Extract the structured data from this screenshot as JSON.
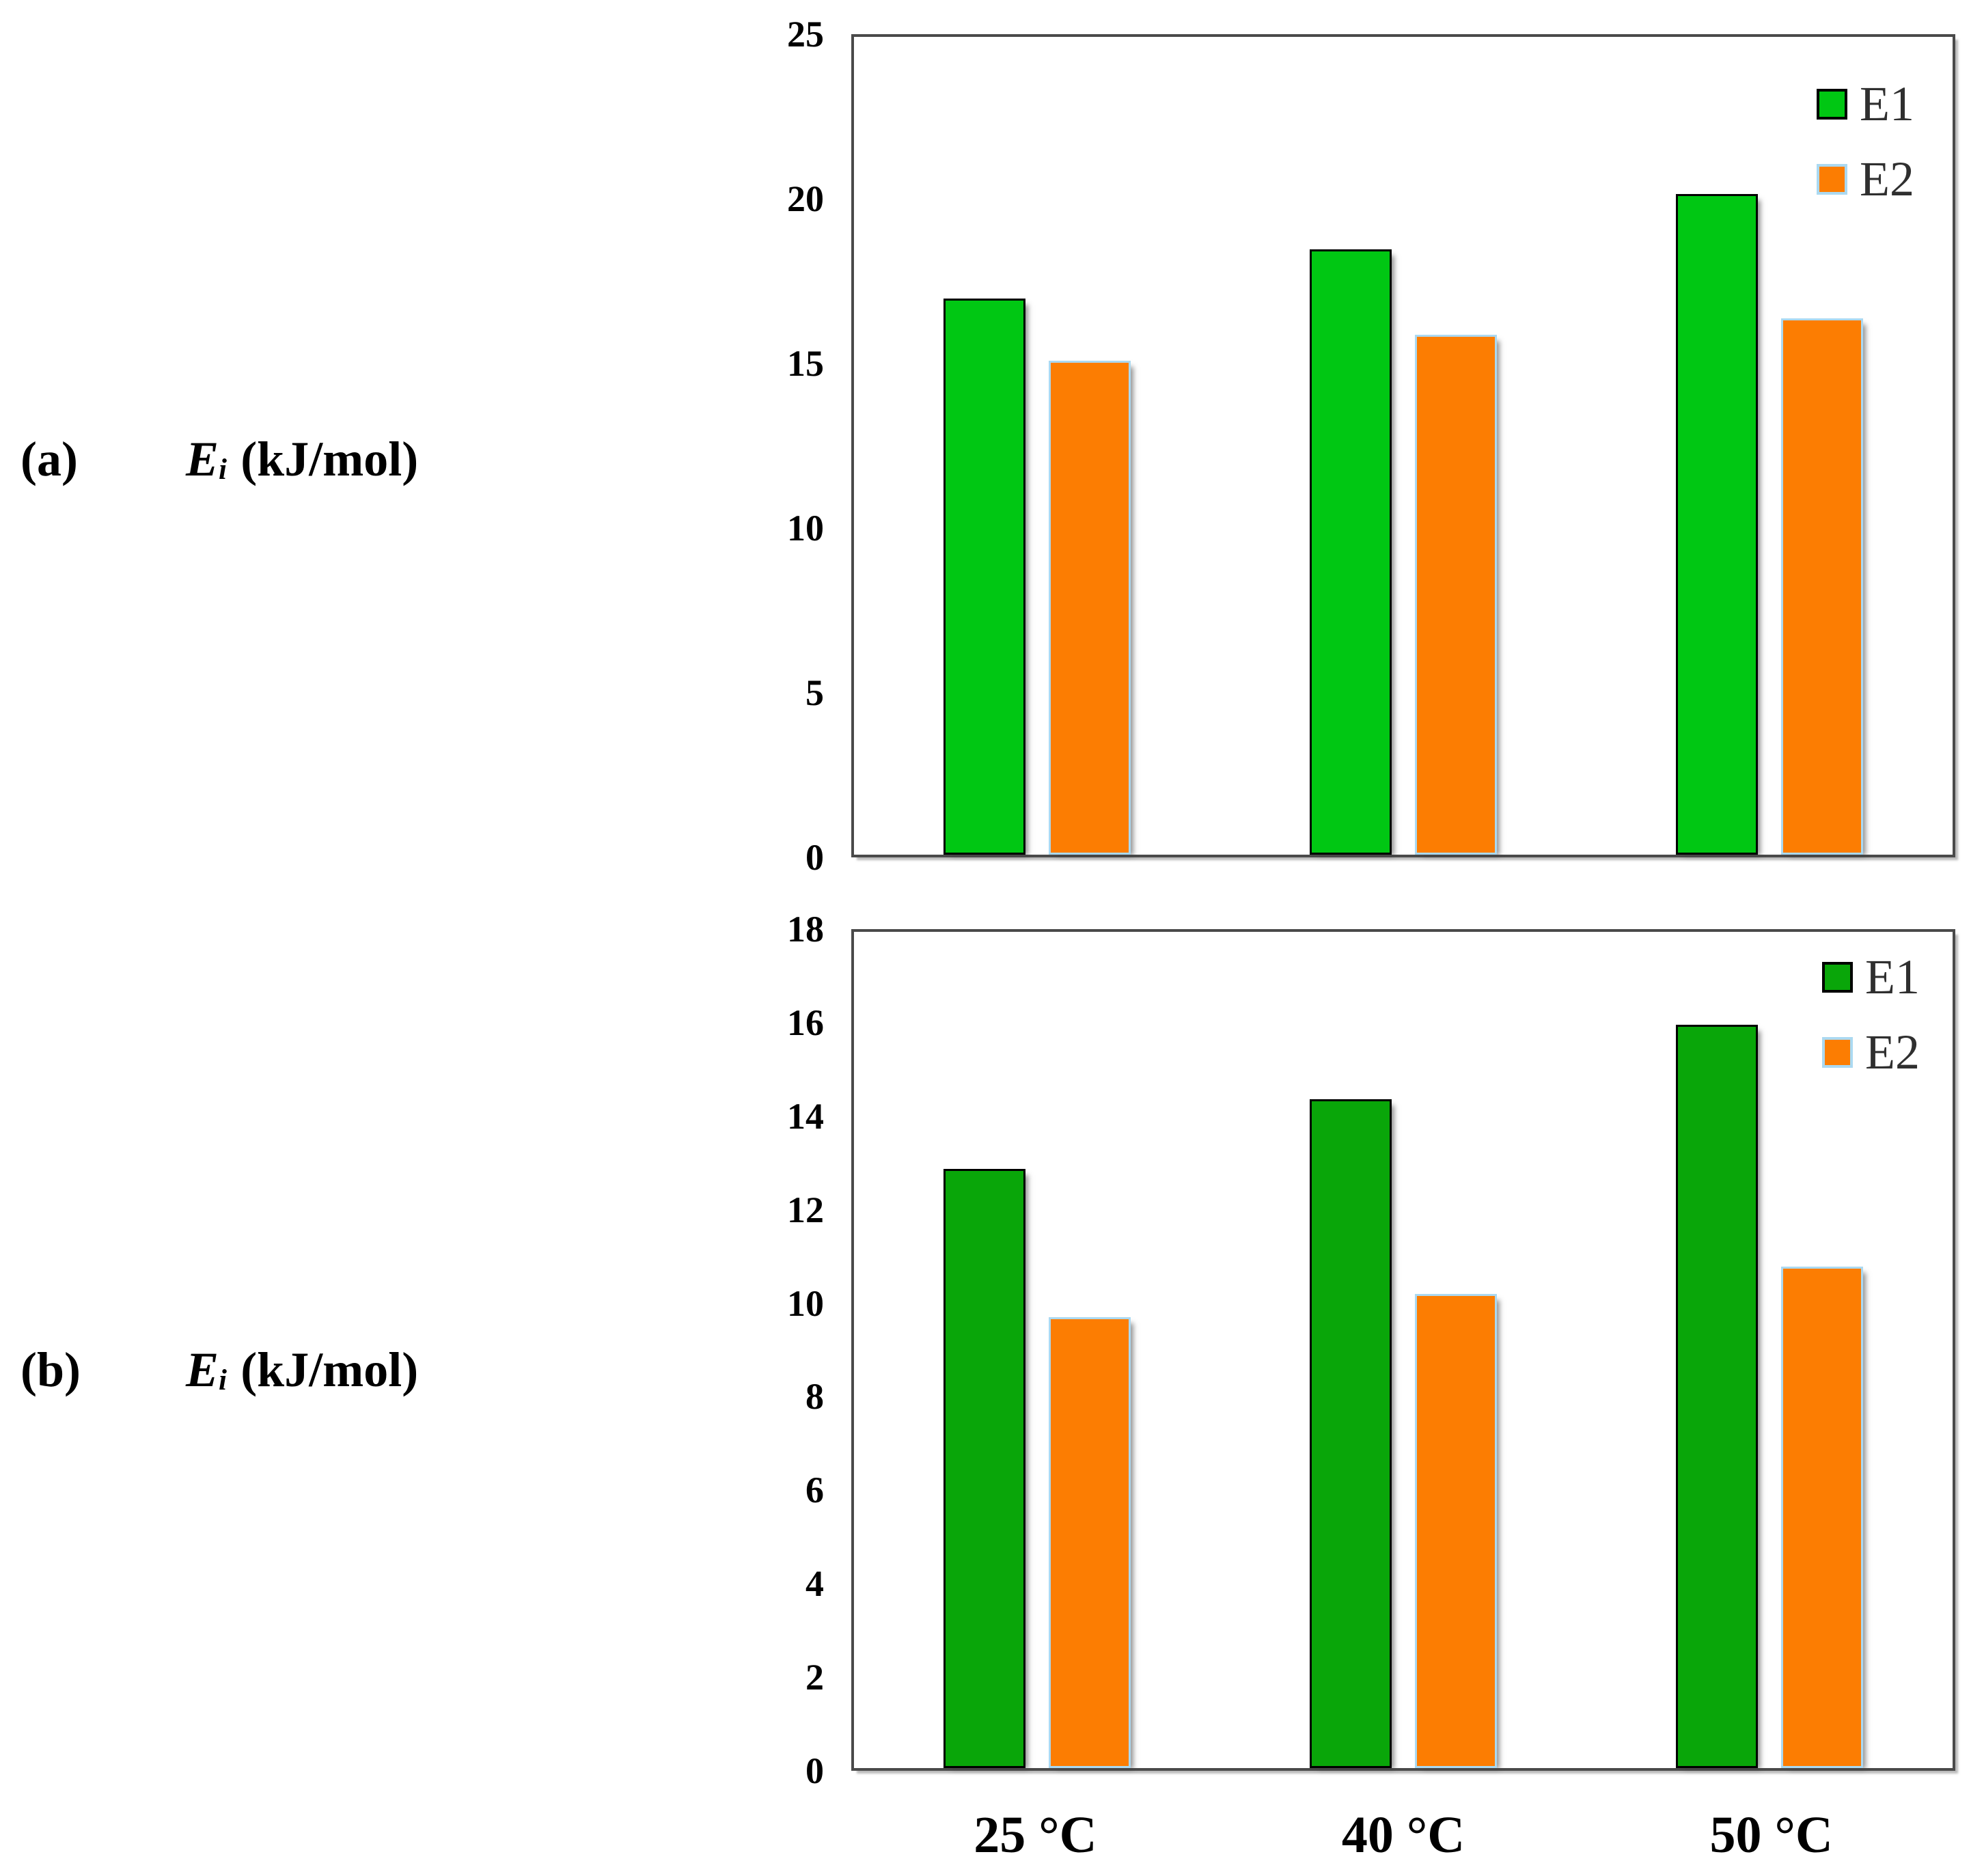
{
  "figure": {
    "background": "#ffffff",
    "frame_color": "#4a4a4a",
    "tick_text_color": "#000000",
    "legend_text_color": "#2f2f2f"
  },
  "chart_data": [
    {
      "type": "bar",
      "panel_label": "(a)",
      "ylabel_symbol": "E",
      "ylabel_subscript": "i",
      "ylabel_units": "(kJ/mol)",
      "categories": [
        "25 °C",
        "40 °C",
        "50 °C"
      ],
      "series": [
        {
          "name": "E1",
          "values": [
            17.0,
            18.5,
            20.2
          ],
          "color": "#00C713",
          "border_color": "#000000"
        },
        {
          "name": "E2",
          "values": [
            15.1,
            15.9,
            16.4
          ],
          "color": "#FC7D02",
          "border_color": "#ABD9F1"
        }
      ],
      "ylim": [
        0,
        25
      ],
      "yticks": [
        25,
        20,
        15,
        10,
        5,
        0
      ],
      "grid": false,
      "legend_position": "top-right",
      "x_labels_visible": false
    },
    {
      "type": "bar",
      "panel_label": "(b)",
      "ylabel_symbol": "E",
      "ylabel_subscript": "i",
      "ylabel_units": "(kJ/mol)",
      "categories": [
        "25 °C",
        "40 °C",
        "50 °C"
      ],
      "series": [
        {
          "name": "E1",
          "values": [
            12.9,
            14.4,
            16.0
          ],
          "color": "#09A609",
          "border_color": "#000000"
        },
        {
          "name": "E2",
          "values": [
            9.7,
            10.2,
            10.8
          ],
          "color": "#FC7D02",
          "border_color": "#ABD9F1"
        }
      ],
      "ylim": [
        0,
        18
      ],
      "yticks": [
        18,
        16,
        14,
        12,
        10,
        8,
        6,
        4,
        2,
        0
      ],
      "grid": false,
      "legend_position": "top-right",
      "x_labels_visible": true
    }
  ]
}
